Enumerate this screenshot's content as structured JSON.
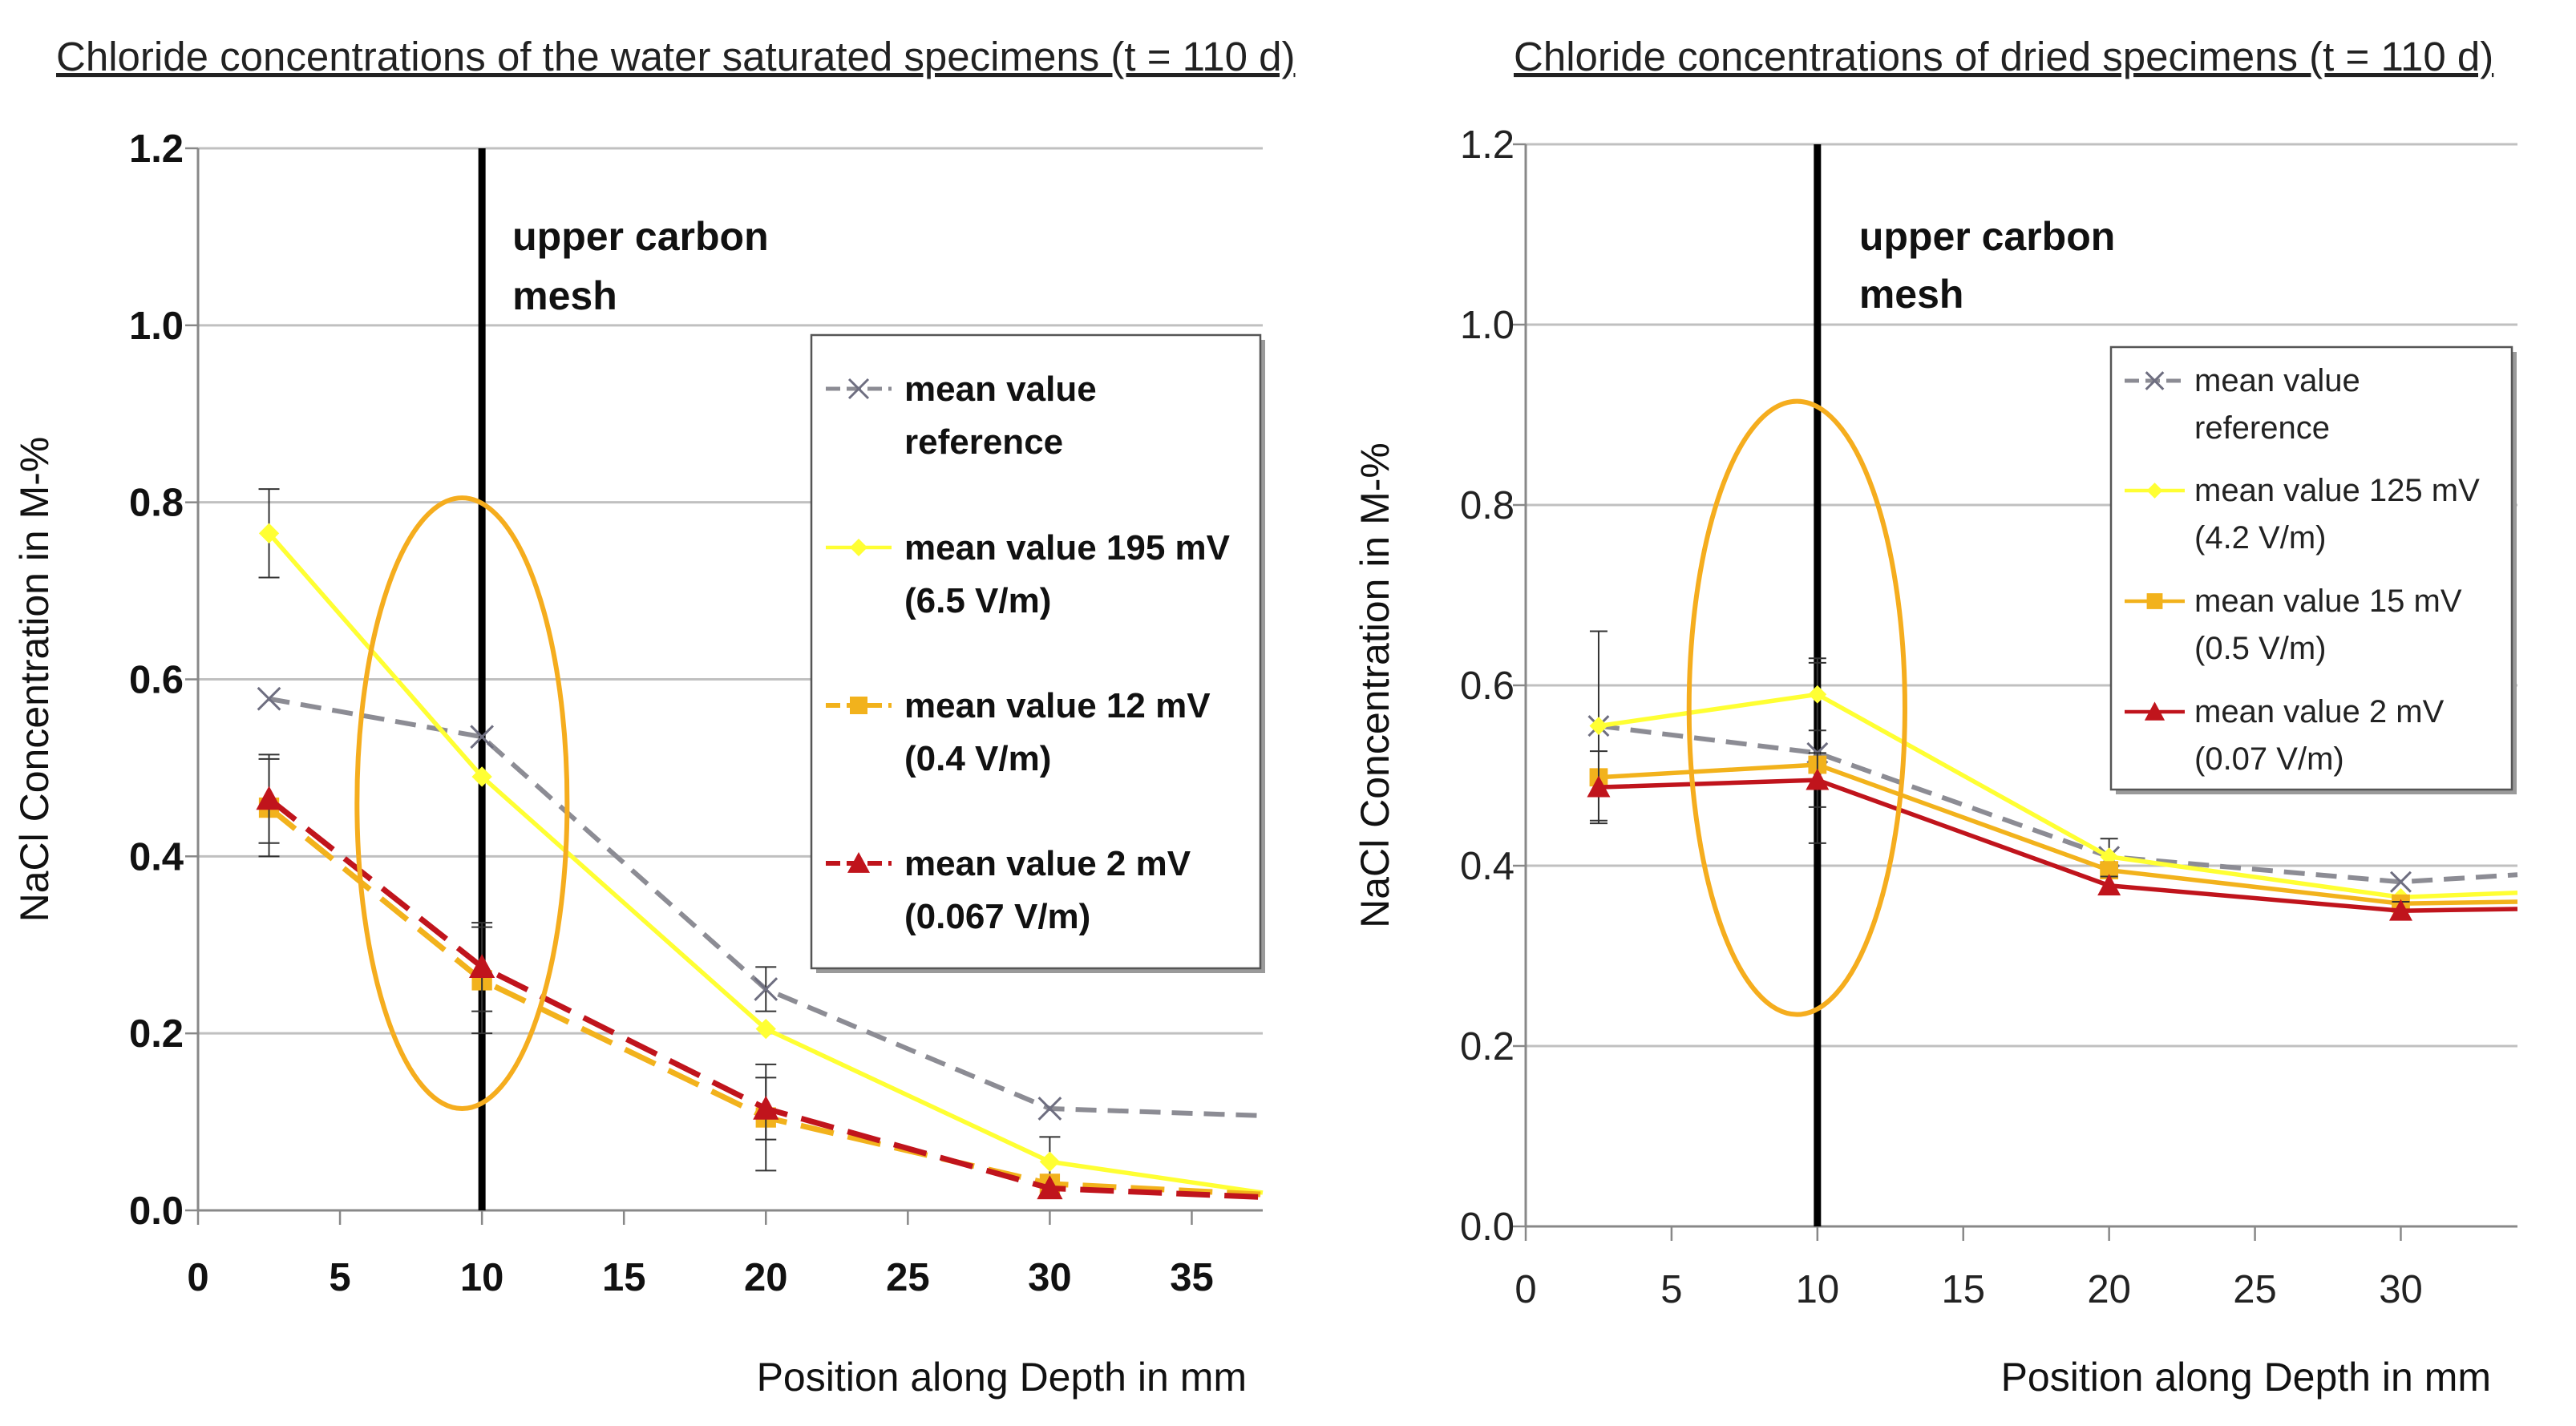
{
  "chart_data": [
    {
      "type": "line",
      "title": "Chloride concentrations of the water saturated specimens (t = 110 d)",
      "xlabel": "Position along Depth in mm",
      "ylabel": "NaCl Concentration in M-%",
      "xlim": [
        0,
        37.5
      ],
      "ylim": [
        0,
        1.2
      ],
      "xticks": [
        "0",
        "5",
        "10",
        "15",
        "20",
        "25",
        "30",
        "35"
      ],
      "yticks": [
        "0.0",
        "0.2",
        "0.4",
        "0.6",
        "0.8",
        "1.0",
        "1.2"
      ],
      "grid": true,
      "annotation": {
        "x": 10,
        "lines": [
          "upper carbon",
          "mesh"
        ]
      },
      "ellipse": {
        "cx": 9.3,
        "cy": 0.46,
        "rx": 3.7,
        "ry": 0.345
      },
      "legend_position": "right",
      "series": [
        {
          "name": "mean value reference",
          "legend_lines": [
            "mean value",
            "reference"
          ],
          "color": "#8c8c94",
          "dash": "dash",
          "marker": "x",
          "x": [
            2.5,
            10,
            20,
            30,
            37.5
          ],
          "y": [
            0.578,
            0.535,
            0.25,
            0.115,
            0.107
          ],
          "yerr": [
            0,
            0,
            0.025,
            0,
            0
          ]
        },
        {
          "name": "mean value 195 mV (6.5 V/m)",
          "legend_lines": [
            "mean value 195 mV",
            "(6.5 V/m)"
          ],
          "color": "#ffff33",
          "dash": "solid",
          "marker": "diamond",
          "x": [
            2.5,
            10,
            20,
            30,
            37.5
          ],
          "y": [
            0.765,
            0.49,
            0.205,
            0.055,
            0.02
          ],
          "yerr": [
            0.05,
            0,
            0,
            0.028,
            0
          ]
        },
        {
          "name": "mean value 12 mV (0.4 V/m)",
          "legend_lines": [
            "mean value 12 mV",
            "(0.4 V/m)"
          ],
          "color": "#f2b21c",
          "dash": "dash",
          "marker": "square",
          "x": [
            2.5,
            10,
            20,
            30,
            37.5
          ],
          "y": [
            0.455,
            0.26,
            0.105,
            0.03,
            0.018
          ],
          "yerr": [
            0.055,
            0.06,
            0.06,
            0,
            0
          ]
        },
        {
          "name": "mean value 2 mV (0.067 V/m)",
          "legend_lines": [
            "mean value 2 mV",
            "(0.067 V/m)"
          ],
          "color": "#c0141c",
          "dash": "dash",
          "marker": "triangle",
          "x": [
            2.5,
            10,
            20,
            30,
            37.5
          ],
          "y": [
            0.465,
            0.275,
            0.115,
            0.025,
            0.015
          ],
          "yerr": [
            0.05,
            0.05,
            0.035,
            0,
            0
          ]
        }
      ]
    },
    {
      "type": "line",
      "title": "Chloride concentrations of dried specimens (t = 110 d)",
      "xlabel": "Position along Depth in mm",
      "ylabel": "NaCl Concentration in M-%",
      "xlim": [
        0,
        34
      ],
      "ylim": [
        0,
        1.2
      ],
      "xticks": [
        "0",
        "5",
        "10",
        "15",
        "20",
        "25",
        "30"
      ],
      "yticks": [
        "0.0",
        "0.2",
        "0.4",
        "0.6",
        "0.8",
        "1.0",
        "1.2"
      ],
      "grid": true,
      "annotation": {
        "x": 10,
        "lines": [
          "upper carbon",
          "mesh"
        ]
      },
      "ellipse": {
        "cx": 9.3,
        "cy": 0.575,
        "rx": 3.7,
        "ry": 0.34
      },
      "legend_position": "top-right",
      "series": [
        {
          "name": "mean value reference",
          "legend_lines": [
            "mean value",
            "reference"
          ],
          "color": "#8c8c94",
          "dash": "dash",
          "marker": "x",
          "x": [
            2.5,
            10,
            20,
            30,
            34
          ],
          "y": [
            0.555,
            0.525,
            0.41,
            0.382,
            0.39
          ],
          "yerr": [
            0.105,
            0.1,
            0,
            0,
            0
          ]
        },
        {
          "name": "mean value 125 mV (4.2 V/m)",
          "legend_lines": [
            "mean value 125 mV",
            "(4.2 V/m)"
          ],
          "color": "#ffff33",
          "dash": "solid",
          "marker": "diamond",
          "x": [
            2.5,
            10,
            20,
            30,
            34
          ],
          "y": [
            0.555,
            0.59,
            0.41,
            0.365,
            0.37
          ],
          "yerr": [
            0,
            0.04,
            0.02,
            0,
            0
          ]
        },
        {
          "name": "mean value 15 mV (0.5 V/m)",
          "legend_lines": [
            "mean value 15 mV",
            "(0.5 V/m)"
          ],
          "color": "#f2b21c",
          "dash": "solid",
          "marker": "square",
          "x": [
            2.5,
            10,
            20,
            30,
            34
          ],
          "y": [
            0.498,
            0.512,
            0.395,
            0.358,
            0.36
          ],
          "yerr": [
            0,
            0,
            0,
            0,
            0
          ]
        },
        {
          "name": "mean value 2 mV (0.07 V/m)",
          "legend_lines": [
            "mean value 2 mV",
            "(0.07 V/m)"
          ],
          "color": "#c0141c",
          "dash": "solid",
          "marker": "triangle",
          "x": [
            2.5,
            10,
            20,
            30,
            34
          ],
          "y": [
            0.487,
            0.495,
            0.378,
            0.35,
            0.352
          ],
          "yerr": [
            0.04,
            0.03,
            0.01,
            0.01,
            0
          ]
        }
      ]
    }
  ],
  "colors": {
    "ellipse": "#f5ad1e",
    "grid": "#c0c0c0",
    "axis": "#888888",
    "annotation_line": "#000000"
  }
}
